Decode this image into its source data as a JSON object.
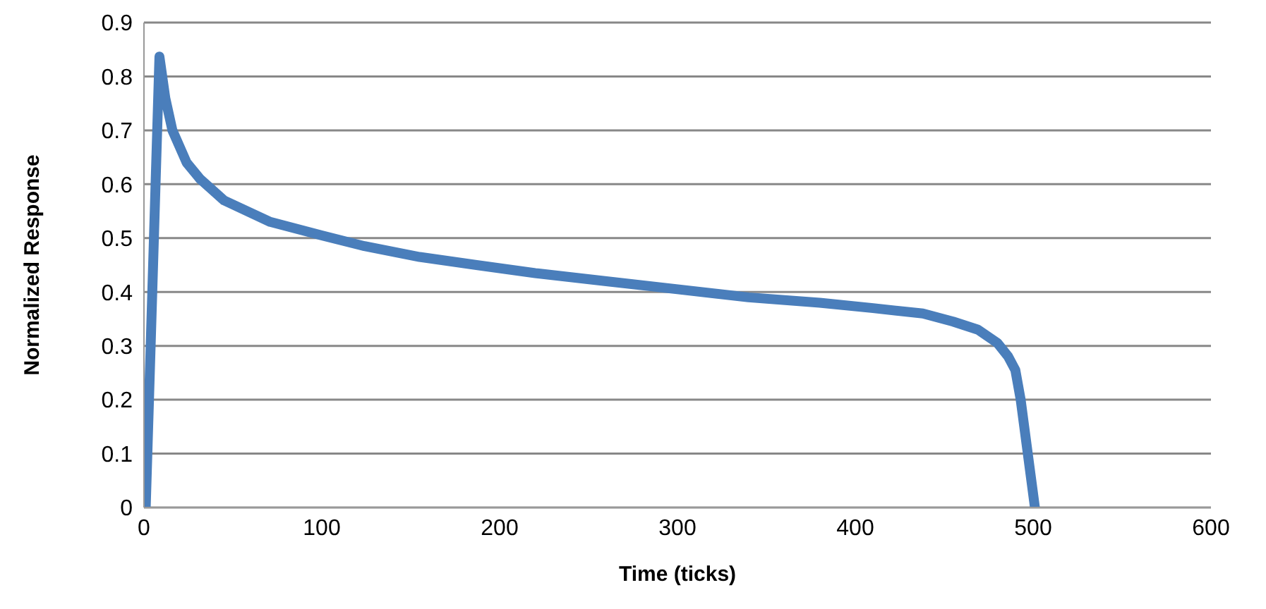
{
  "chart_data": {
    "type": "line",
    "xlabel": "Time (ticks)",
    "ylabel": "Normalized Response",
    "xlim": [
      0,
      600
    ],
    "xticks": [
      0,
      100,
      200,
      300,
      400,
      500,
      600
    ],
    "ylim": [
      0,
      0.9
    ],
    "yticks": [
      0,
      0.1,
      0.2,
      0.3,
      0.4,
      0.5,
      0.6,
      0.7,
      0.8,
      0.9
    ],
    "grid": "y",
    "marker": "none",
    "line_style": "solid",
    "series": [
      {
        "color": "#4a7ebb",
        "x": [
          1,
          8.7,
          12,
          16,
          24,
          31.5,
          45,
          71,
          100,
          124,
          155,
          187,
          220,
          260,
          300,
          340,
          380,
          410,
          438,
          455,
          469,
          480,
          486,
          490,
          493,
          495,
          497,
          499,
          501
        ],
        "values": [
          0,
          0.837,
          0.76,
          0.7,
          0.64,
          0.61,
          0.57,
          0.53,
          0.505,
          0.485,
          0.465,
          0.45,
          0.435,
          0.42,
          0.405,
          0.39,
          0.38,
          0.37,
          0.36,
          0.345,
          0.33,
          0.305,
          0.28,
          0.255,
          0.2,
          0.15,
          0.1,
          0.05,
          0
        ]
      }
    ]
  }
}
